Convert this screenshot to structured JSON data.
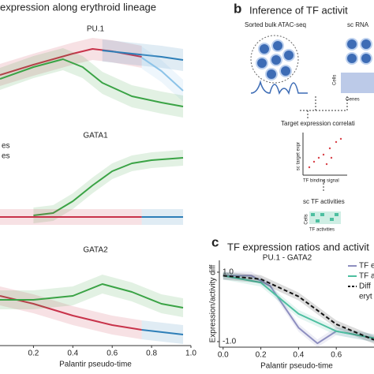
{
  "panel_a": {
    "title": "expression along erythroid lineage"
  },
  "panel_b": {
    "letter": "b",
    "title": "Inference of TF activit",
    "bulk": "Sorted bulk ATAC-seq",
    "sc": "sc RNA",
    "cells": "Cells",
    "genes": "Genes",
    "correlation": "Target expression correlati",
    "y_label": "sc target expr",
    "x_label": "TF binding signal",
    "activities": "sc TF activities",
    "cells2": "Cells",
    "activities_label": "TF activities"
  },
  "panel_c": {
    "letter": "c",
    "title": "TF expression ratios and activit"
  },
  "chart_data": [
    {
      "type": "line",
      "title": "PU.1",
      "xlim": [
        0.03,
        1.0
      ],
      "ylim": [
        0,
        1
      ],
      "series": [
        {
          "color": "#c8334a",
          "x": [
            0.03,
            0.2,
            0.4,
            0.5,
            0.6,
            0.75
          ],
          "values": [
            0.55,
            0.68,
            0.82,
            0.88,
            0.85,
            0.78
          ]
        },
        {
          "color": "#2e7fb8",
          "x": [
            0.55,
            0.7,
            0.85,
            0.96
          ],
          "values": [
            0.86,
            0.82,
            0.78,
            0.74
          ]
        },
        {
          "color": "#8cc3e8",
          "x": [
            0.75,
            0.85,
            0.96
          ],
          "values": [
            0.77,
            0.6,
            0.35
          ]
        },
        {
          "color": "#3aa345",
          "x": [
            0.03,
            0.2,
            0.35,
            0.45,
            0.55,
            0.7,
            0.85,
            0.96
          ],
          "values": [
            0.5,
            0.65,
            0.75,
            0.65,
            0.45,
            0.28,
            0.2,
            0.15
          ]
        }
      ]
    },
    {
      "type": "line",
      "title": "GATA1",
      "xlim": [
        0.03,
        1.0
      ],
      "ylim": [
        0,
        1
      ],
      "series": [
        {
          "name": "es",
          "color": "#3aa345",
          "x": [
            0.2,
            0.3,
            0.4,
            0.5,
            0.6,
            0.7,
            0.8,
            0.96
          ],
          "values": [
            0.12,
            0.15,
            0.3,
            0.5,
            0.68,
            0.78,
            0.82,
            0.85
          ]
        },
        {
          "name": "es",
          "color": "#c8334a",
          "x": [
            0.03,
            0.4,
            0.75
          ],
          "values": [
            0.1,
            0.1,
            0.1
          ]
        },
        {
          "color": "#2e7fb8",
          "x": [
            0.75,
            0.96
          ],
          "values": [
            0.1,
            0.1
          ]
        }
      ]
    },
    {
      "type": "line",
      "title": "GATA2",
      "xlim": [
        0.03,
        1.0
      ],
      "ylim": [
        0,
        1
      ],
      "xticks": [
        {
          "value": 0.2,
          "label": "0.2"
        },
        {
          "value": 0.4,
          "label": "0.4"
        },
        {
          "value": 0.6,
          "label": "0.6"
        },
        {
          "value": 0.8,
          "label": "0.8"
        },
        {
          "value": 1,
          "label": "1.0"
        }
      ],
      "x_label": "Palantir pseudo-time",
      "series": [
        {
          "color": "#c8334a",
          "x": [
            0.03,
            0.2,
            0.4,
            0.6,
            0.75
          ],
          "values": [
            0.55,
            0.45,
            0.3,
            0.18,
            0.12
          ]
        },
        {
          "color": "#2e7fb8",
          "x": [
            0.75,
            0.96
          ],
          "values": [
            0.12,
            0.06
          ]
        },
        {
          "color": "#3aa345",
          "x": [
            0.03,
            0.2,
            0.4,
            0.55,
            0.7,
            0.85,
            0.96
          ],
          "values": [
            0.5,
            0.5,
            0.55,
            0.7,
            0.6,
            0.45,
            0.4
          ]
        }
      ]
    },
    {
      "type": "line",
      "title": "PU.1 - GATA2",
      "xlim": [
        -0.02,
        0.8
      ],
      "ylim": [
        -1.16,
        1.34
      ],
      "xticks": [
        {
          "value": 0,
          "label": "0.0"
        },
        {
          "value": 0.2,
          "label": "0.2"
        },
        {
          "value": 0.4,
          "label": "0.4"
        },
        {
          "value": 0.6,
          "label": "0.6"
        }
      ],
      "yticks": [
        {
          "value": 1,
          "label": "1.0"
        },
        {
          "value": -1,
          "label": "-1.0"
        }
      ],
      "x_label": "Palantir pseudo-time",
      "y_label": "Expression/activity diff",
      "legend_extra": "eryt",
      "series": [
        {
          "name": "TF e",
          "color": "#8e8fc0",
          "x": [
            0,
            0.15,
            0.25,
            0.4,
            0.5,
            0.6,
            0.8
          ],
          "values": [
            0.9,
            0.9,
            0.6,
            -0.6,
            -1.05,
            -0.7,
            -0.9
          ]
        },
        {
          "name": "TF a",
          "color": "#4dbfa0",
          "x": [
            0,
            0.2,
            0.4,
            0.6,
            0.8
          ],
          "values": [
            0.9,
            0.7,
            -0.2,
            -0.7,
            -0.9
          ]
        },
        {
          "name": "Diff",
          "color": "#111111",
          "dash": true,
          "x": [
            0,
            0.2,
            0.4,
            0.6,
            0.8
          ],
          "values": [
            0.9,
            0.8,
            0.3,
            -0.5,
            -0.95
          ]
        }
      ]
    }
  ]
}
